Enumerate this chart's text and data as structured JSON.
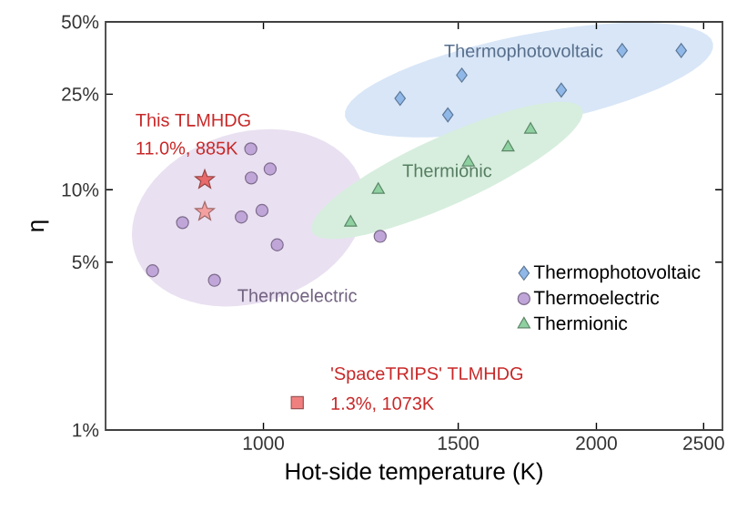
{
  "chart_data": {
    "type": "scatter",
    "xlabel": "Hot-side temperature (K)",
    "ylabel": "η",
    "log": "xy",
    "grid": false,
    "legend": "bottom right",
    "xlim": [
      720,
      2600
    ],
    "xticks": [
      1000,
      1500,
      2000,
      2500
    ],
    "ylim": [
      1,
      50
    ],
    "yticks": [
      {
        "value": 1,
        "label": "1%"
      },
      {
        "value": 5,
        "label": "5%"
      },
      {
        "value": 10,
        "label": "10%"
      },
      {
        "value": 25,
        "label": "25%"
      },
      {
        "value": 50,
        "label": "50%"
      }
    ],
    "series": [
      {
        "name": "Thermophotovoltaic",
        "color": "#8fb8e8",
        "marker": "diamond",
        "x": [
          1329,
          1468,
          1511,
          1859,
          2110,
          2386
        ],
        "values": [
          24,
          20.5,
          30,
          26,
          38,
          38
        ]
      },
      {
        "name": "Thermoelectric",
        "color": "#c0a6d8",
        "marker": "circle",
        "x": [
          794,
          845,
          903,
          955,
          974,
          975,
          997,
          1014,
          1029,
          1275
        ],
        "values": [
          4.6,
          7.3,
          4.2,
          7.7,
          14.8,
          11.2,
          8.2,
          12.2,
          5.9,
          6.4
        ]
      },
      {
        "name": "Thermionic",
        "color": "#8ed0a0",
        "marker": "triangle",
        "x": [
          1199,
          1270,
          1532,
          1664,
          1744
        ],
        "values": [
          7.3,
          10,
          13,
          15,
          17.8
        ]
      },
      {
        "color": "#e86a6a",
        "marker": "star",
        "x": [
          885
        ],
        "values": [
          11.0
        ]
      },
      {
        "color": "#f4a0a0",
        "marker": "star",
        "x": [
          885
        ],
        "values": [
          8.1
        ]
      },
      {
        "color": "#f08080",
        "marker": "square",
        "x": [
          1073
        ],
        "values": [
          1.3
        ]
      }
    ],
    "annotations": [
      "This TLMHDG",
      "11.0%,  885K",
      "'SpaceTRIPS' TLMHDG",
      "1.3%, 1073K"
    ]
  }
}
